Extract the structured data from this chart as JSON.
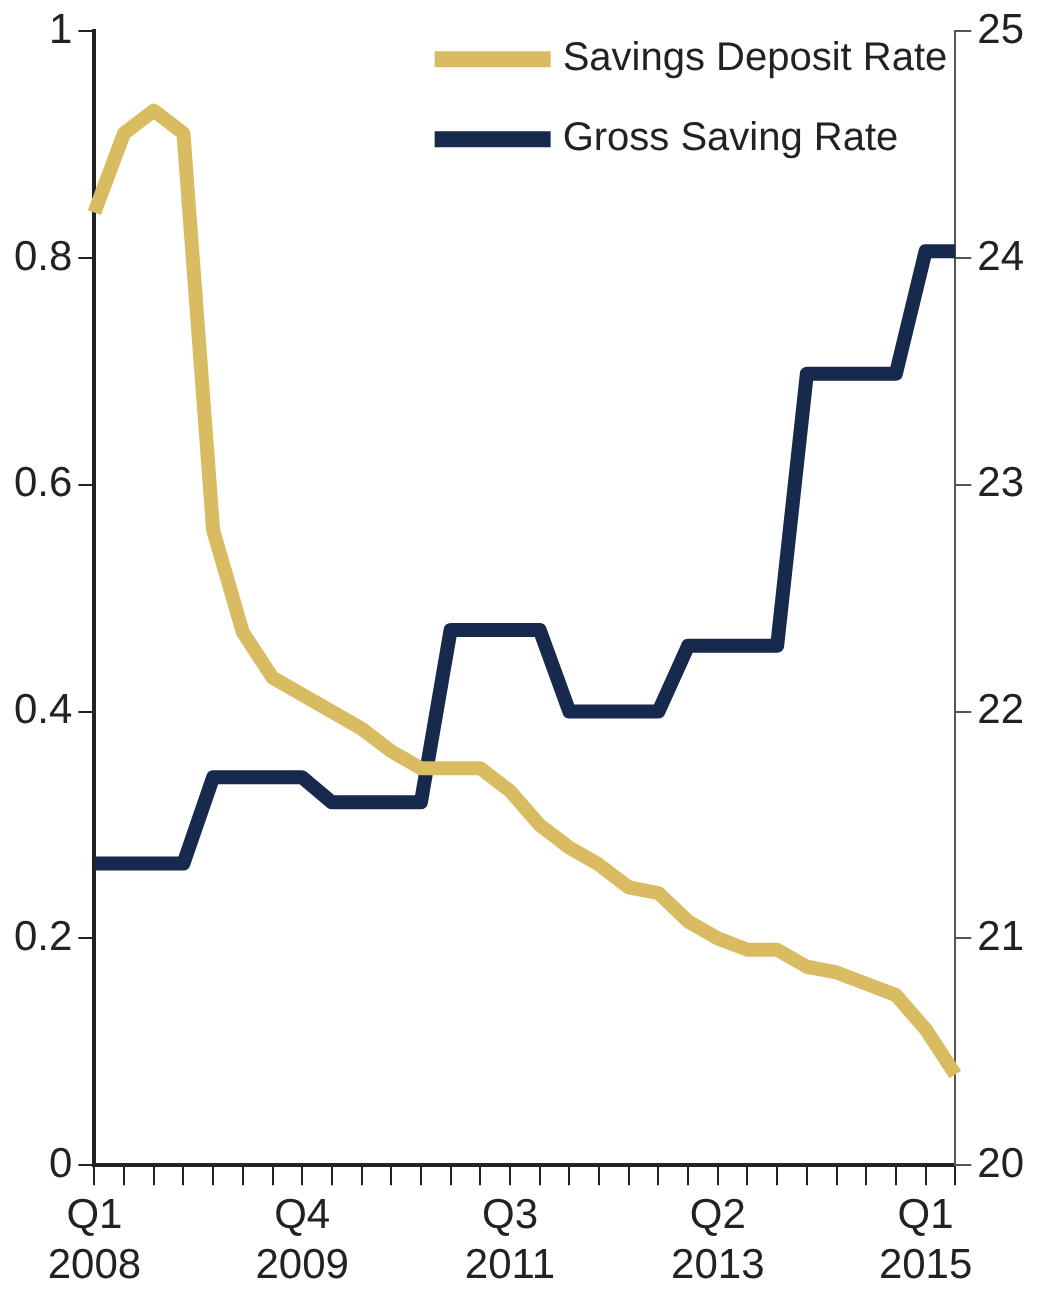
{
  "chart_data": {
    "type": "line",
    "categories": [
      "Q1\n2008",
      null,
      null,
      null,
      null,
      null,
      null,
      "Q4\n2009",
      null,
      null,
      null,
      null,
      null,
      null,
      "Q3\n2011",
      null,
      null,
      null,
      null,
      null,
      null,
      "Q2\n2013",
      null,
      null,
      null,
      null,
      null,
      null,
      "Q1\n2015",
      null
    ],
    "series": [
      {
        "name": "Savings Deposit Rate",
        "color": "#d9bc62",
        "values": [
          0.84,
          0.91,
          0.93,
          0.91,
          0.56,
          0.47,
          0.43,
          0.415,
          0.4,
          0.385,
          0.365,
          0.35,
          0.35,
          0.35,
          0.33,
          0.3,
          0.28,
          0.265,
          0.245,
          0.24,
          0.215,
          0.2,
          0.19,
          0.19,
          0.175,
          0.17,
          0.16,
          0.15,
          0.12,
          0.08
        ]
      },
      {
        "name": "Gross Saving Rate",
        "color": "#17294d",
        "axis": "y2",
        "values": [
          21.33,
          21.33,
          21.33,
          21.33,
          21.71,
          21.71,
          21.71,
          21.71,
          21.6,
          21.6,
          21.6,
          21.6,
          22.36,
          22.36,
          22.36,
          22.36,
          22.0,
          22.0,
          22.0,
          22.0,
          22.29,
          22.29,
          22.29,
          22.29,
          23.49,
          23.49,
          23.49,
          23.49,
          24.03,
          24.03
        ]
      }
    ],
    "ylim": [
      0,
      1
    ],
    "yticks": [
      0,
      0.2,
      0.4,
      0.6,
      0.8,
      1
    ],
    "y2lim": [
      20,
      25
    ],
    "y2ticks": [
      20,
      21,
      22,
      23,
      24,
      25
    ],
    "grid": false,
    "legend": "top",
    "marker": "none",
    "line_style": "solid"
  }
}
